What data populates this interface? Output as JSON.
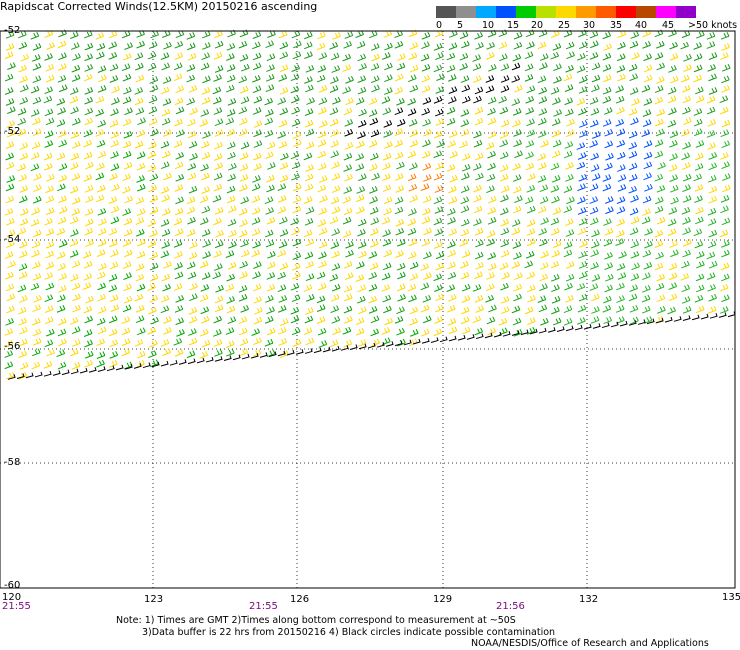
{
  "title": "Rapidscat Corrected Winds(12.5KM) 20150216 ascending",
  "legend": {
    "colors": [
      "#555555",
      "#8f8f8f",
      "#00a8ff",
      "#0050ff",
      "#00cc00",
      "#b8e000",
      "#ffd800",
      "#ff9a00",
      "#ff5a00",
      "#ff0000",
      "#b84800",
      "#ff00ff",
      "#9000c8"
    ],
    "ticks": [
      "0",
      "5",
      "10",
      "15",
      "20",
      "25",
      "30",
      "35",
      "40",
      "45",
      ">50 knots"
    ]
  },
  "axes": {
    "x_ticks": [
      "120",
      "123",
      "126",
      "129",
      "132",
      "135"
    ],
    "y_ticks": [
      "-52",
      "-52",
      "-54",
      "-56",
      "-58",
      "-60"
    ]
  },
  "times": [
    "21:55",
    "21:55",
    "21:56"
  ],
  "notes": {
    "line1": "Note: 1) Times are GMT 2)Times along bottom correspond to measurement at ~50S",
    "line2": "3)Data buffer is 22 hrs from 20150216 4) Black circles indicate possible contamination",
    "credit": "NOAA/NESDIS/Office of Research and Applications"
  }
}
